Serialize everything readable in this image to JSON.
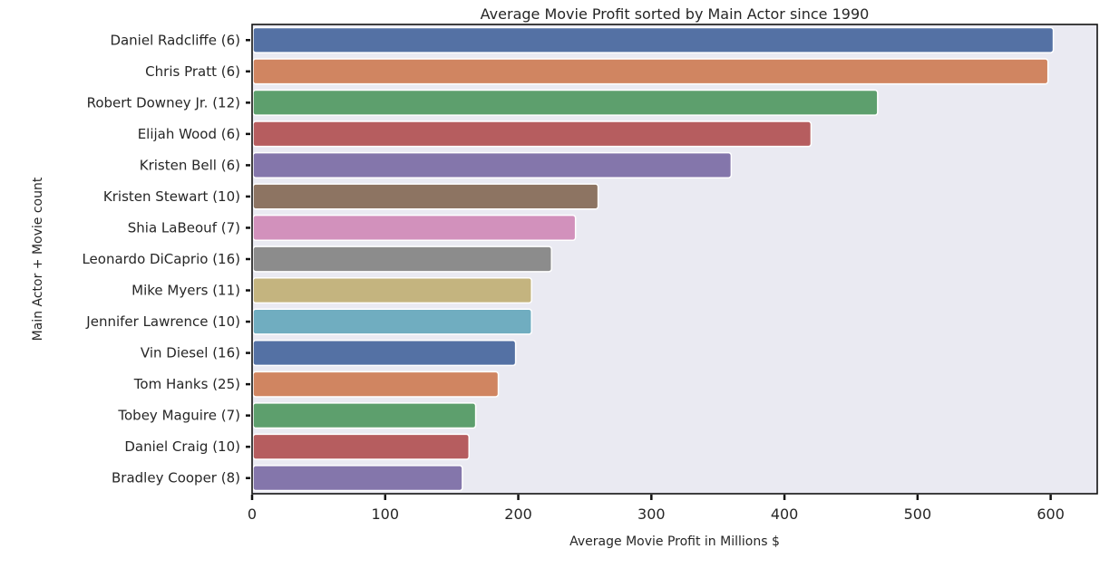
{
  "chart_data": {
    "type": "bar",
    "orientation": "horizontal",
    "title": "Average Movie Profit sorted by Main Actor since 1990",
    "xlabel": "Average Movie Profit in Millions $",
    "ylabel": "Main Actor + Movie count",
    "xlim": [
      0,
      635
    ],
    "xticks": [
      0,
      100,
      200,
      300,
      400,
      500,
      600
    ],
    "grid": false,
    "legend": "none",
    "categories": [
      "Daniel Radcliffe (6)",
      "Chris Pratt (6)",
      "Robert Downey Jr. (12)",
      "Elijah Wood (6)",
      "Kristen Bell (6)",
      "Kristen Stewart (10)",
      "Shia LaBeouf (7)",
      "Leonardo DiCaprio (16)",
      "Mike Myers (11)",
      "Jennifer Lawrence (10)",
      "Vin Diesel (16)",
      "Tom Hanks (25)",
      "Tobey Maguire (7)",
      "Daniel Craig (10)",
      "Bradley Cooper (8)"
    ],
    "values": [
      602,
      598,
      470,
      420,
      360,
      260,
      243,
      225,
      210,
      210,
      198,
      185,
      168,
      163,
      158
    ],
    "colors": [
      "#5471a4",
      "#d08561",
      "#5d9f6d",
      "#b65d5f",
      "#8476ab",
      "#8d7462",
      "#d291bc",
      "#8c8c8c",
      "#c4b47f",
      "#70adc0",
      "#5471a4",
      "#d08561",
      "#5d9f6d",
      "#b65d5f",
      "#8476ab"
    ],
    "plot_background": "#eaeaf2"
  }
}
